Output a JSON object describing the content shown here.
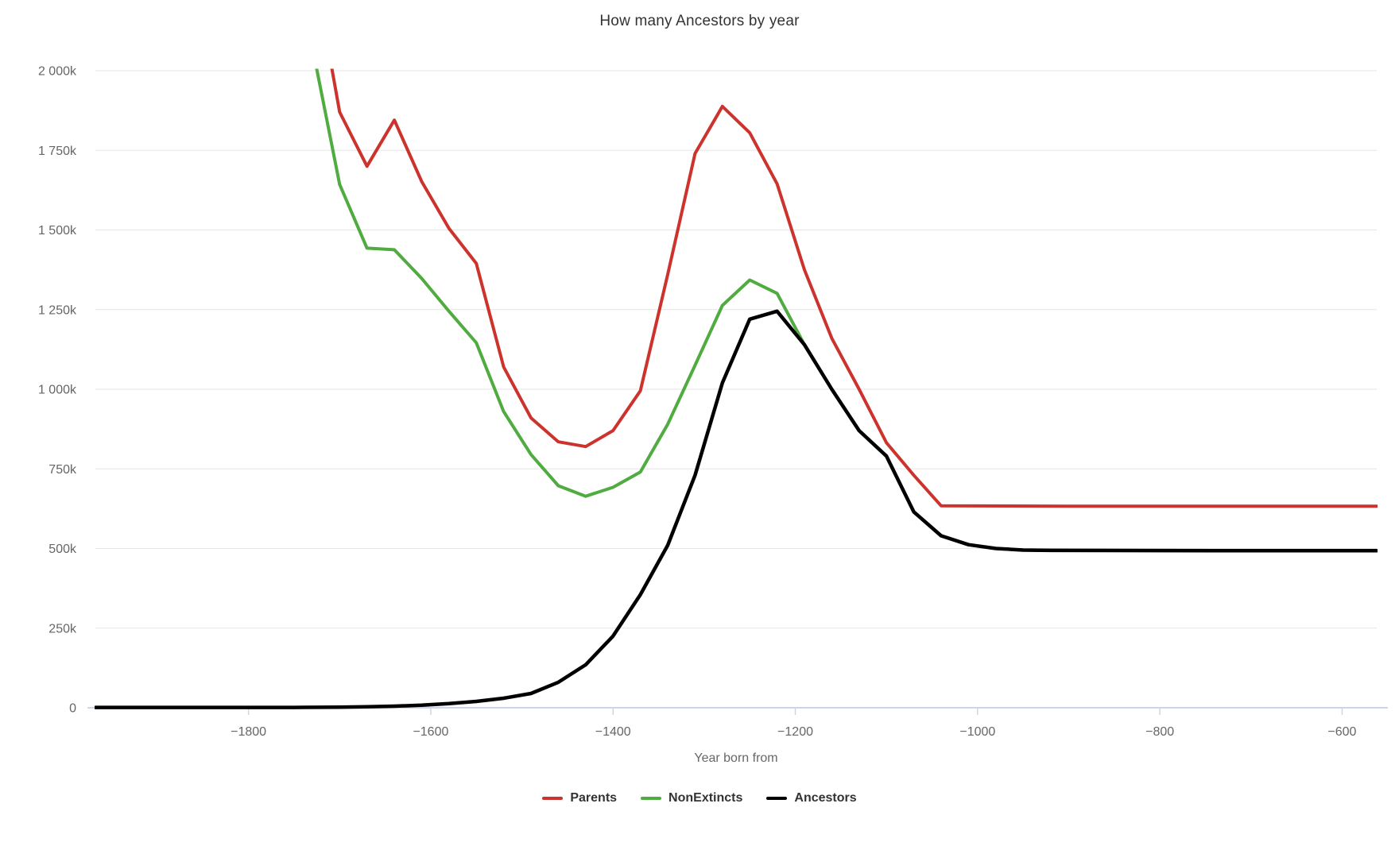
{
  "chart_data": {
    "type": "line",
    "title": "How many Ancestors by year",
    "xlabel": "Year born from",
    "ylabel": "",
    "x_domain": [
      -1968,
      -562
    ],
    "y_domain_thousands": [
      0,
      2000
    ],
    "grid": "horizontal",
    "legend_position": "bottom",
    "colors": {
      "grid_line": "#e6e6e6",
      "axis_line": "#ccd6eb",
      "tick_label": "#666666",
      "title_text": "#333333",
      "legend_text": "#333333",
      "background": "#ffffff"
    },
    "x_ticks": [
      {
        "value": -1800,
        "label": "−1800"
      },
      {
        "value": -1600,
        "label": "−1600"
      },
      {
        "value": -1400,
        "label": "−1400"
      },
      {
        "value": -1200,
        "label": "−1200"
      },
      {
        "value": -1000,
        "label": "−1000"
      },
      {
        "value": -800,
        "label": "−800"
      },
      {
        "value": -600,
        "label": "−600"
      }
    ],
    "y_ticks": [
      {
        "value": 0,
        "label": "0"
      },
      {
        "value": 250,
        "label": "250k"
      },
      {
        "value": 500,
        "label": "500k"
      },
      {
        "value": 750,
        "label": "750k"
      },
      {
        "value": 1000,
        "label": "1 000k"
      },
      {
        "value": 1250,
        "label": "1 250k"
      },
      {
        "value": 1500,
        "label": "1 500k"
      },
      {
        "value": 1750,
        "label": "1 750k"
      },
      {
        "value": 2000,
        "label": "2 000k"
      }
    ],
    "series": [
      {
        "name": "Parents",
        "color": "#cd332d",
        "stroke_width": 4,
        "points": [
          [
            -1730,
            2350
          ],
          [
            -1700,
            1870
          ],
          [
            -1670,
            1700
          ],
          [
            -1640,
            1845
          ],
          [
            -1610,
            1652
          ],
          [
            -1580,
            1505
          ],
          [
            -1550,
            1395
          ],
          [
            -1520,
            1070
          ],
          [
            -1490,
            910
          ],
          [
            -1460,
            835
          ],
          [
            -1430,
            820
          ],
          [
            -1400,
            870
          ],
          [
            -1370,
            995
          ],
          [
            -1340,
            1360
          ],
          [
            -1310,
            1740
          ],
          [
            -1280,
            1888
          ],
          [
            -1250,
            1805
          ],
          [
            -1220,
            1645
          ],
          [
            -1190,
            1375
          ],
          [
            -1160,
            1160
          ],
          [
            -1130,
            1000
          ],
          [
            -1100,
            832
          ],
          [
            -1070,
            730
          ],
          [
            -1040,
            634
          ],
          [
            -900,
            633
          ],
          [
            -700,
            633
          ],
          [
            -562,
            633
          ]
        ]
      },
      {
        "name": "NonExtincts",
        "color": "#50ab40",
        "stroke_width": 4,
        "points": [
          [
            -1730,
            2075
          ],
          [
            -1700,
            1643
          ],
          [
            -1670,
            1443
          ],
          [
            -1640,
            1438
          ],
          [
            -1610,
            1348
          ],
          [
            -1580,
            1245
          ],
          [
            -1550,
            1146
          ],
          [
            -1520,
            930
          ],
          [
            -1490,
            795
          ],
          [
            -1460,
            697
          ],
          [
            -1430,
            664
          ],
          [
            -1400,
            692
          ],
          [
            -1370,
            740
          ],
          [
            -1340,
            890
          ],
          [
            -1310,
            1075
          ],
          [
            -1280,
            1263
          ],
          [
            -1250,
            1343
          ],
          [
            -1220,
            1301
          ],
          [
            -1190,
            1140
          ],
          [
            -1160,
            1000
          ],
          [
            -1130,
            870
          ],
          [
            -1100,
            790
          ],
          [
            -1070,
            615
          ],
          [
            -1040,
            540
          ],
          [
            -1010,
            512
          ],
          [
            -980,
            500
          ],
          [
            -950,
            495
          ],
          [
            -920,
            494
          ],
          [
            -700,
            493
          ],
          [
            -562,
            493
          ]
        ]
      },
      {
        "name": "Ancestors",
        "color": "#000000",
        "stroke_width": 4.5,
        "points": [
          [
            -1968,
            1
          ],
          [
            -1900,
            1
          ],
          [
            -1800,
            1
          ],
          [
            -1750,
            1
          ],
          [
            -1700,
            2
          ],
          [
            -1670,
            3
          ],
          [
            -1640,
            5
          ],
          [
            -1610,
            8
          ],
          [
            -1580,
            13
          ],
          [
            -1550,
            20
          ],
          [
            -1520,
            30
          ],
          [
            -1490,
            45
          ],
          [
            -1460,
            80
          ],
          [
            -1430,
            135
          ],
          [
            -1400,
            225
          ],
          [
            -1370,
            355
          ],
          [
            -1340,
            510
          ],
          [
            -1310,
            730
          ],
          [
            -1280,
            1020
          ],
          [
            -1250,
            1220
          ],
          [
            -1220,
            1245
          ],
          [
            -1190,
            1140
          ],
          [
            -1160,
            1000
          ],
          [
            -1130,
            870
          ],
          [
            -1100,
            790
          ],
          [
            -1070,
            615
          ],
          [
            -1040,
            540
          ],
          [
            -1010,
            512
          ],
          [
            -980,
            500
          ],
          [
            -950,
            495
          ],
          [
            -920,
            494
          ],
          [
            -700,
            493
          ],
          [
            -562,
            493
          ]
        ]
      }
    ]
  }
}
